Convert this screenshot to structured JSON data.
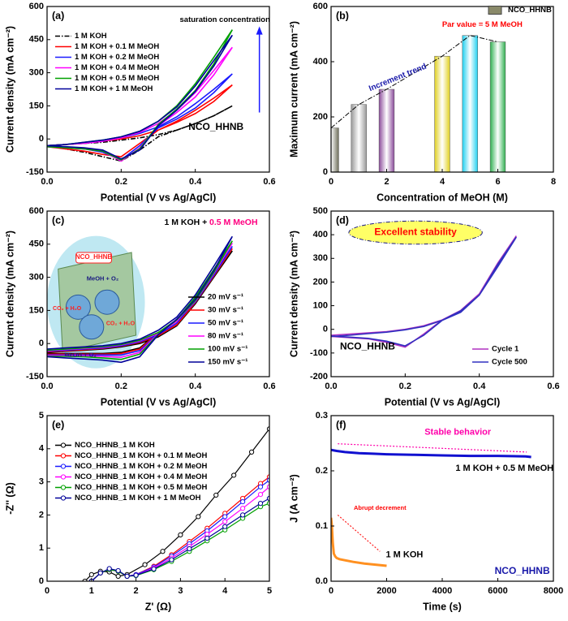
{
  "chart_data": [
    {
      "type": "line",
      "panel_label": "(a)",
      "xlabel": "Potential (V vs Ag/AgCl)",
      "ylabel": "Current density (mA cm⁻²)",
      "xlim": [
        0,
        0.6
      ],
      "ylim": [
        -150,
        600
      ],
      "xticks": [
        {
          "value": 0,
          "label": "0.0"
        },
        0.2,
        0.4,
        0.6
      ],
      "yticks": [
        -150,
        0,
        150,
        300,
        450,
        600
      ],
      "legend": "upper left",
      "line_width": 1.6,
      "x": [
        0,
        0.05,
        0.1,
        0.15,
        0.2,
        0.25,
        0.3,
        0.35,
        0.4,
        0.45,
        0.5,
        0.45,
        0.4,
        0.35,
        0.3,
        0.25,
        0.2,
        0.15,
        0.1,
        0.05,
        0
      ],
      "series": [
        {
          "name": "1 M KOH",
          "color": "#000000",
          "dash": "dashdot",
          "values": [
            -30,
            -25,
            -20,
            -15,
            -5,
            5,
            20,
            40,
            70,
            105,
            150,
            105,
            70,
            40,
            10,
            -50,
            -100,
            -80,
            -60,
            -45,
            -30
          ]
        },
        {
          "name": "1 M KOH + 0.1 M MeOH",
          "color": "#ff0000",
          "values": [
            -30,
            -25,
            -20,
            -10,
            0,
            15,
            40,
            80,
            130,
            185,
            245,
            170,
            115,
            75,
            40,
            -20,
            -80,
            -70,
            -55,
            -45,
            -35
          ]
        },
        {
          "name": "1 M KOH + 0.2 M MeOH",
          "color": "#1a1aff",
          "values": [
            -30,
            -25,
            -20,
            -10,
            5,
            25,
            55,
            100,
            160,
            225,
            295,
            210,
            140,
            90,
            50,
            -30,
            -95,
            -60,
            -45,
            -40,
            -35
          ]
        },
        {
          "name": "1 M KOH + 0.4 M MeOH",
          "color": "#ff00ff",
          "values": [
            -30,
            -25,
            -20,
            -10,
            5,
            30,
            70,
            130,
            210,
            310,
            415,
            290,
            190,
            120,
            60,
            -40,
            -100,
            -55,
            -45,
            -40,
            -35
          ]
        },
        {
          "name": "1 M KOH + 0.5 M MeOH",
          "color": "#00a000",
          "values": [
            -30,
            -25,
            -15,
            -5,
            10,
            35,
            80,
            150,
            250,
            370,
            495,
            340,
            220,
            135,
            65,
            -45,
            -95,
            -55,
            -45,
            -40,
            -35
          ]
        },
        {
          "name": "1 M KOH + 1 M MeOH",
          "color": "#000099",
          "values": [
            -30,
            -25,
            -15,
            -5,
            10,
            35,
            80,
            145,
            240,
            355,
            470,
            330,
            215,
            130,
            60,
            -50,
            -90,
            -50,
            -40,
            -35,
            -30
          ]
        }
      ],
      "annotations": [
        {
          "text": "saturation concentration",
          "color": "#000000"
        },
        {
          "text": "NCO_HHNB",
          "color": "#000000"
        }
      ]
    },
    {
      "type": "bar",
      "panel_label": "(b)",
      "xlabel": "Concentration of MeOH (M)",
      "ylabel": "Maximum current (mA cm⁻²)",
      "xlim": [
        0,
        8
      ],
      "ylim": [
        0,
        600
      ],
      "xticks": [
        0,
        2,
        4,
        6,
        8
      ],
      "yticks": [
        0,
        200,
        400,
        600
      ],
      "legend": "upper right",
      "trend_line": true,
      "x": [
        0,
        1,
        2,
        4,
        5,
        6
      ],
      "series": [
        {
          "name": "NCO_HHNB",
          "color": "#8a8a6a",
          "colors": [
            "#6e6e5a",
            "#9a9a9a",
            "#8a4a9a",
            "#e0d020",
            "#20d0f0",
            "#30b050"
          ],
          "values": [
            160,
            245,
            300,
            420,
            495,
            472
          ]
        }
      ],
      "annotations": [
        {
          "text": "Increment trend",
          "color": "#1a1aaa"
        },
        {
          "text": "Par value = 5 M MeOH",
          "color": "#ff0000"
        }
      ]
    },
    {
      "type": "line",
      "panel_label": "(c)",
      "xlabel": "Potential (V vs Ag/AgCl)",
      "ylabel": "Current density (mA cm⁻²)",
      "xlim": [
        0,
        0.6
      ],
      "ylim": [
        -150,
        600
      ],
      "xticks": [
        {
          "value": 0,
          "label": "0.0"
        },
        0.2,
        0.4,
        0.6
      ],
      "yticks": [
        -150,
        0,
        150,
        300,
        450,
        600
      ],
      "legend": "lower right",
      "line_width": 1.6,
      "x": [
        0,
        0.05,
        0.1,
        0.15,
        0.2,
        0.25,
        0.3,
        0.35,
        0.4,
        0.45,
        0.5,
        0.45,
        0.4,
        0.35,
        0.3,
        0.25,
        0.2,
        0.15,
        0.1,
        0.05,
        0
      ],
      "series": [
        {
          "name": "20 mV s⁻¹",
          "color": "#000000",
          "values": [
            -40,
            -35,
            -30,
            -25,
            -15,
            0,
            30,
            80,
            180,
            300,
            420,
            300,
            180,
            100,
            50,
            -20,
            -40,
            -45,
            -45,
            -45,
            -45
          ]
        },
        {
          "name": "30 mV s⁻¹",
          "color": "#ff0000",
          "values": [
            -38,
            -33,
            -28,
            -22,
            -12,
            5,
            35,
            85,
            185,
            305,
            430,
            305,
            185,
            100,
            48,
            -25,
            -45,
            -48,
            -48,
            -48,
            -48
          ]
        },
        {
          "name": "50 mV s⁻¹",
          "color": "#1a1aff",
          "values": [
            -35,
            -30,
            -25,
            -20,
            -10,
            8,
            40,
            92,
            195,
            315,
            440,
            310,
            188,
            103,
            46,
            -32,
            -52,
            -52,
            -52,
            -52,
            -52
          ]
        },
        {
          "name": "80 mV s⁻¹",
          "color": "#ff00ff",
          "values": [
            -32,
            -27,
            -22,
            -16,
            -6,
            12,
            46,
            100,
            203,
            325,
            455,
            318,
            192,
            105,
            44,
            -40,
            -62,
            -58,
            -56,
            -55,
            -55
          ]
        },
        {
          "name": "100 mV s⁻¹",
          "color": "#00a000",
          "values": [
            -30,
            -25,
            -20,
            -14,
            -4,
            15,
            50,
            108,
            210,
            335,
            465,
            322,
            195,
            107,
            42,
            -48,
            -72,
            -65,
            -60,
            -58,
            -58
          ]
        },
        {
          "name": "150 mV s⁻¹",
          "color": "#000099",
          "values": [
            -25,
            -20,
            -15,
            -10,
            0,
            20,
            60,
            120,
            220,
            350,
            485,
            330,
            200,
            110,
            40,
            -60,
            -85,
            -75,
            -70,
            -65,
            -60
          ]
        }
      ],
      "annotations": [
        {
          "text": "1 M KOH +",
          "color": "#000000"
        },
        {
          "text": "0.5 M MeOH",
          "color": "#ff0080"
        },
        {
          "text": "NCO_HHNB",
          "color": "#ff2020"
        },
        {
          "text": "MeOH + O₂",
          "color": "#1a1a80"
        },
        {
          "text": "CO₂ + H₂O",
          "color": "#ff2020"
        },
        {
          "text": "CO₂ + H₂O",
          "color": "#ff2020"
        },
        {
          "text": "MeOH + O₂",
          "color": "#1a1a80"
        }
      ]
    },
    {
      "type": "line",
      "panel_label": "(d)",
      "xlabel": "Potential (V vs Ag/AgCl)",
      "ylabel": "Current density (mA cm⁻²)",
      "xlim": [
        0,
        0.6
      ],
      "ylim": [
        -200,
        500
      ],
      "xticks": [
        {
          "value": 0,
          "label": "0.0"
        },
        0.2,
        0.4,
        0.6
      ],
      "yticks": [
        -200,
        -100,
        0,
        100,
        200,
        300,
        400,
        500
      ],
      "legend": "lower right",
      "line_width": 1.6,
      "x": [
        0,
        0.05,
        0.1,
        0.15,
        0.2,
        0.25,
        0.3,
        0.35,
        0.4,
        0.45,
        0.5,
        0.45,
        0.4,
        0.35,
        0.3,
        0.25,
        0.2,
        0.15,
        0.1,
        0.05,
        0
      ],
      "series": [
        {
          "name": "Cycle 1",
          "color": "#b030c0",
          "values": [
            -25,
            -20,
            -15,
            -10,
            0,
            15,
            40,
            75,
            150,
            280,
            395,
            270,
            150,
            80,
            40,
            -20,
            -75,
            -55,
            -40,
            -35,
            -30
          ]
        },
        {
          "name": "Cycle 500",
          "color": "#3030c0",
          "values": [
            -30,
            -25,
            -18,
            -12,
            -2,
            12,
            38,
            72,
            145,
            275,
            390,
            265,
            145,
            78,
            38,
            -25,
            -70,
            -50,
            -38,
            -33,
            -28
          ]
        }
      ],
      "annotations": [
        {
          "text": "Excellent stability",
          "color": "#ff0000"
        },
        {
          "text": "NCO_HHNB",
          "color": "#000000"
        }
      ]
    },
    {
      "type": "line",
      "panel_label": "(e)",
      "xlabel": "Z' (Ω)",
      "ylabel": "-Z'' (Ω)",
      "xlim": [
        0,
        5
      ],
      "ylim": [
        0,
        5
      ],
      "xticks": [
        0,
        1,
        2,
        3,
        4,
        5
      ],
      "yticks": [
        0,
        1,
        2,
        3,
        4,
        5
      ],
      "legend": "upper left",
      "markers": true,
      "line_width": 1.2,
      "series": [
        {
          "name": "NCO_HHNB_1 M KOH",
          "color": "#000000",
          "x": [
            0.85,
            1.0,
            1.2,
            1.4,
            1.6,
            1.8,
            2.2,
            2.6,
            3.0,
            3.4,
            3.8,
            4.2,
            4.6,
            5.0
          ],
          "values": [
            0,
            0.2,
            0.3,
            0.28,
            0.15,
            0.2,
            0.5,
            0.9,
            1.4,
            1.95,
            2.6,
            3.2,
            3.9,
            4.6
          ]
        },
        {
          "name": "NCO_HHNB_1 M KOH + 0.1 M MeOH",
          "color": "#ff0000",
          "x": [
            1.0,
            1.2,
            1.4,
            1.6,
            1.8,
            2.0,
            2.4,
            2.8,
            3.2,
            3.6,
            4.0,
            4.4,
            4.8,
            5.0
          ],
          "values": [
            0,
            0.25,
            0.35,
            0.3,
            0.15,
            0.2,
            0.45,
            0.8,
            1.2,
            1.6,
            2.05,
            2.5,
            2.95,
            3.15
          ]
        },
        {
          "name": "NCO_HHNB_1 M KOH + 0.2 M MeOH",
          "color": "#1a1aff",
          "x": [
            1.0,
            1.2,
            1.4,
            1.6,
            1.8,
            2.0,
            2.4,
            2.8,
            3.2,
            3.6,
            4.0,
            4.4,
            4.8,
            5.0
          ],
          "values": [
            0,
            0.25,
            0.35,
            0.3,
            0.15,
            0.2,
            0.43,
            0.76,
            1.13,
            1.52,
            1.95,
            2.4,
            2.85,
            3.05
          ]
        },
        {
          "name": "NCO_HHNB_1 M KOH + 0.4 M MeOH",
          "color": "#ff00ff",
          "x": [
            1.0,
            1.2,
            1.4,
            1.6,
            1.8,
            2.0,
            2.4,
            2.8,
            3.2,
            3.6,
            4.0,
            4.4,
            4.8,
            5.0
          ],
          "values": [
            0,
            0.25,
            0.35,
            0.3,
            0.15,
            0.18,
            0.4,
            0.7,
            1.05,
            1.42,
            1.8,
            2.2,
            2.62,
            2.85
          ]
        },
        {
          "name": "NCO_HHNB_1 M KOH + 0.5 M MeOH",
          "color": "#00a000",
          "x": [
            1.0,
            1.2,
            1.4,
            1.6,
            1.8,
            2.0,
            2.4,
            2.8,
            3.2,
            3.6,
            4.0,
            4.4,
            4.8,
            5.0
          ],
          "values": [
            0,
            0.25,
            0.35,
            0.3,
            0.15,
            0.17,
            0.35,
            0.6,
            0.9,
            1.22,
            1.55,
            1.9,
            2.25,
            2.35
          ]
        },
        {
          "name": "NCO_HHNB_1 M KOH + 1 M MeOH",
          "color": "#000099",
          "x": [
            1.0,
            1.2,
            1.4,
            1.6,
            1.8,
            2.0,
            2.4,
            2.8,
            3.2,
            3.6,
            4.0,
            4.4,
            4.8,
            5.0
          ],
          "values": [
            0,
            0.25,
            0.38,
            0.32,
            0.15,
            0.18,
            0.37,
            0.65,
            0.98,
            1.3,
            1.65,
            2.0,
            2.35,
            2.5
          ]
        }
      ]
    },
    {
      "type": "line",
      "panel_label": "(f)",
      "xlabel": "Time (s)",
      "ylabel": "J (A cm⁻²)",
      "xlim": [
        0,
        8000
      ],
      "ylim": [
        0,
        0.3
      ],
      "xticks": [
        0,
        2000,
        4000,
        6000,
        8000
      ],
      "yticks": [
        {
          "value": 0,
          "label": "0.0"
        },
        0.1,
        0.2,
        0.3
      ],
      "series_labels": true,
      "line_width": 3,
      "series": [
        {
          "name": "1 M KOH + 0.5 M MeOH",
          "color": "#1010d0",
          "x": [
            0,
            200,
            500,
            1000,
            1500,
            2000,
            3000,
            4000,
            5000,
            6000,
            7000,
            7200
          ],
          "values": [
            0.238,
            0.236,
            0.234,
            0.232,
            0.231,
            0.23,
            0.229,
            0.228,
            0.227,
            0.227,
            0.226,
            0.225
          ]
        },
        {
          "name": "1 M KOH",
          "color": "#ff9020",
          "x": [
            0,
            30,
            60,
            100,
            150,
            200,
            300,
            500,
            800,
            1200,
            1600,
            2000
          ],
          "values": [
            0.115,
            0.1,
            0.07,
            0.05,
            0.045,
            0.042,
            0.04,
            0.038,
            0.035,
            0.032,
            0.03,
            0.028
          ]
        }
      ],
      "annotations": [
        {
          "text": "Stable behavior",
          "color": "#ff00aa"
        },
        {
          "text": "Abrupt decrement",
          "color": "#ff0000"
        },
        {
          "text": "NCO_HHNB",
          "color": "#1a1aaa"
        }
      ]
    }
  ]
}
